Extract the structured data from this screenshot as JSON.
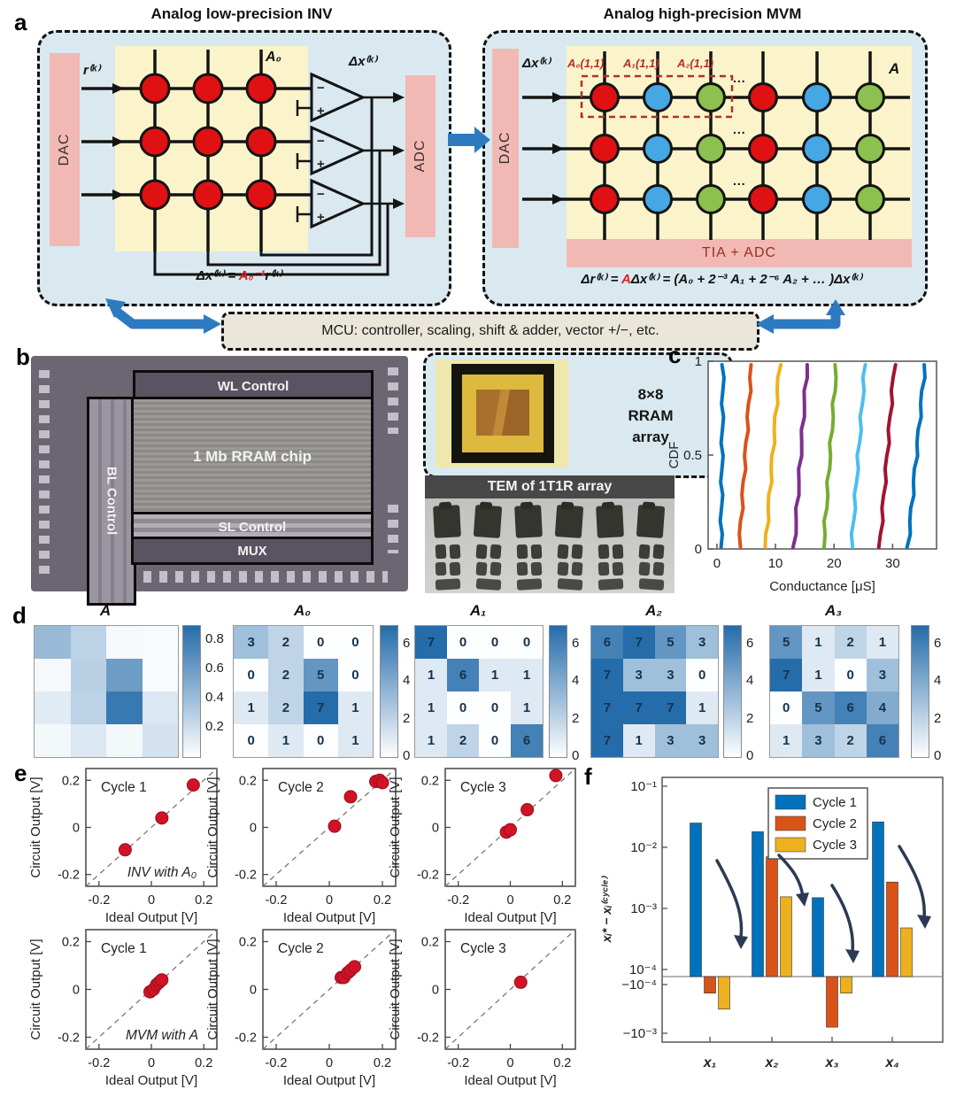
{
  "figure": {
    "labels": {
      "a": "a",
      "b": "b",
      "c": "c",
      "d": "d",
      "e": "e",
      "f": "f"
    }
  },
  "panel_a": {
    "left_title": "Analog low-precision INV",
    "right_title": "Analog high-precision MVM",
    "left": {
      "dac": "DAC",
      "adc": "ADC",
      "input": "r⁽ᵏ⁾",
      "matrix": "A₀",
      "output": "Δx⁽ᵏ⁾",
      "eq_prefix": "Δx⁽ᵏ⁾ = ",
      "eq_red": "A₀⁻¹",
      "eq_suffix": "r⁽ᵏ⁾"
    },
    "right": {
      "dac": "DAC",
      "input": "Δx⁽ᵏ⁾",
      "matrix": "A",
      "tia": "TIA + ADC",
      "annots": [
        "A₀(1,1)",
        "A₁(1,1)",
        "A₂(1,1)"
      ],
      "dots": "...",
      "eq_prefix": "Δr⁽ᵏ⁾ = ",
      "eq_red": "A",
      "eq_suffix": "Δx⁽ᵏ⁾ = (A₀ + 2⁻³ A₁ + 2⁻⁶ A₂ + … )Δx⁽ᵏ⁾"
    },
    "mcu": "MCU: controller, scaling, shift & adder, vector +/−, etc.",
    "colors": {
      "bg": "#d9e9ef",
      "pink": "#f2b9b4",
      "yellow": "#fbf4cb",
      "red": "#e01112",
      "blue": "#45a7e3",
      "green": "#8cc04f",
      "arrow": "#2e7ac0",
      "annot": "#b03226",
      "wire": "#141414",
      "eq_red": "#e02020"
    },
    "right_column_colors": [
      "#e01112",
      "#45a7e3",
      "#8cc04f",
      "#e01112",
      "#45a7e3",
      "#8cc04f"
    ]
  },
  "panel_b": {
    "wl": "WL Control",
    "bl": "BL Control",
    "array": "1 Mb RRAM chip",
    "sl": "SL Control",
    "mux": "MUX",
    "package_lines": [
      "8×8",
      "RRAM",
      "array"
    ],
    "tem_title": "TEM of 1T1R array"
  },
  "chart_data": [
    {
      "id": "c",
      "type": "line",
      "xlabel": "Conductance [μS]",
      "ylabel": "CDF",
      "xlim": [
        -1.5,
        37.5
      ],
      "ylim": [
        0,
        1
      ],
      "xticks": [
        0,
        10,
        20,
        30
      ],
      "yticks": [
        0,
        0.5,
        1
      ],
      "series": [
        {
          "name": "level1",
          "color": "#0072BD",
          "x_at_cdf0": 0.7,
          "x_at_cdf1": 1.05
        },
        {
          "name": "level2",
          "color": "#D95319",
          "x_at_cdf0": 3.8,
          "x_at_cdf1": 5.9
        },
        {
          "name": "level3",
          "color": "#EDB120",
          "x_at_cdf0": 8.3,
          "x_at_cdf1": 10.7
        },
        {
          "name": "level4",
          "color": "#7E2F8E",
          "x_at_cdf0": 13.2,
          "x_at_cdf1": 15.4
        },
        {
          "name": "level5",
          "color": "#77AC30",
          "x_at_cdf0": 18.2,
          "x_at_cdf1": 20.4
        },
        {
          "name": "level6",
          "color": "#4DBEEE",
          "x_at_cdf0": 23.0,
          "x_at_cdf1": 25.3
        },
        {
          "name": "level7",
          "color": "#A2142F",
          "x_at_cdf0": 27.8,
          "x_at_cdf1": 30.3
        },
        {
          "name": "level8",
          "color": "#0072BD",
          "x_at_cdf0": 32.6,
          "x_at_cdf1": 35.5
        }
      ]
    },
    {
      "id": "d",
      "type": "heatmap",
      "maps": [
        {
          "title": "A",
          "vmax": 0.9,
          "show_values": false,
          "colorbar_ticks": [
            0.2,
            0.4,
            0.6,
            0.8
          ],
          "values": [
            [
              0.42,
              0.27,
              0.03,
              0.02
            ],
            [
              0.03,
              0.28,
              0.6,
              0.02
            ],
            [
              0.12,
              0.27,
              0.82,
              0.14
            ],
            [
              0.04,
              0.14,
              0.04,
              0.17
            ]
          ]
        },
        {
          "title": "A₀",
          "vmax": 7,
          "show_values": true,
          "colorbar_ticks": [
            0,
            2,
            4,
            6
          ],
          "values": [
            [
              3,
              2,
              0,
              0
            ],
            [
              0,
              2,
              5,
              0
            ],
            [
              1,
              2,
              7,
              1
            ],
            [
              0,
              1,
              0,
              1
            ]
          ]
        },
        {
          "title": "A₁",
          "vmax": 7,
          "show_values": true,
          "colorbar_ticks": [
            0,
            2,
            4,
            6
          ],
          "values": [
            [
              7,
              0,
              0,
              0
            ],
            [
              1,
              6,
              1,
              1
            ],
            [
              1,
              0,
              0,
              1
            ],
            [
              1,
              2,
              0,
              6
            ]
          ]
        },
        {
          "title": "A₂",
          "vmax": 7,
          "show_values": true,
          "colorbar_ticks": [
            0,
            2,
            4,
            6
          ],
          "values": [
            [
              6,
              7,
              5,
              3
            ],
            [
              7,
              3,
              3,
              0
            ],
            [
              7,
              7,
              7,
              1
            ],
            [
              7,
              1,
              3,
              3
            ]
          ]
        },
        {
          "title": "A₃",
          "vmax": 7,
          "show_values": true,
          "colorbar_ticks": [
            0,
            2,
            4,
            6
          ],
          "values": [
            [
              5,
              1,
              2,
              1
            ],
            [
              7,
              1,
              0,
              3
            ],
            [
              0,
              5,
              6,
              4
            ],
            [
              1,
              3,
              2,
              6
            ]
          ]
        }
      ]
    },
    {
      "id": "e",
      "type": "scatter",
      "xlabel": "Ideal Output [V]",
      "ylabel": "Circuit Output [V]",
      "lim": [
        -0.25,
        0.25
      ],
      "ticks": [
        -0.2,
        0,
        0.2
      ],
      "point_color": "#d01326",
      "subplots": [
        {
          "cycle": "Cycle 1",
          "annotation": "INV with A₀",
          "points": [
            [
              -0.1,
              -0.095
            ],
            [
              0.04,
              0.04
            ],
            [
              0.16,
              0.18
            ]
          ]
        },
        {
          "cycle": "Cycle 2",
          "annotation": "",
          "points": [
            [
              0.02,
              0.005
            ],
            [
              0.08,
              0.13
            ],
            [
              0.175,
              0.195
            ],
            [
              0.19,
              0.2
            ],
            [
              0.2,
              0.19
            ]
          ]
        },
        {
          "cycle": "Cycle 3",
          "annotation": "",
          "points": [
            [
              -0.015,
              -0.02
            ],
            [
              0,
              -0.01
            ],
            [
              0.065,
              0.075
            ],
            [
              0.175,
              0.22
            ]
          ]
        },
        {
          "cycle": "Cycle 1",
          "annotation": "MVM with A",
          "points": [
            [
              -0.005,
              -0.01
            ],
            [
              0.008,
              0
            ],
            [
              0.02,
              0.02
            ],
            [
              0.03,
              0.03
            ],
            [
              0.04,
              0.04
            ]
          ]
        },
        {
          "cycle": "Cycle 2",
          "annotation": "",
          "points": [
            [
              0.045,
              0.05
            ],
            [
              0.055,
              0.05
            ],
            [
              0.07,
              0.07
            ],
            [
              0.08,
              0.08
            ],
            [
              0.095,
              0.095
            ]
          ]
        },
        {
          "cycle": "Cycle 3",
          "annotation": "",
          "points": [
            [
              0.04,
              0.03
            ]
          ]
        }
      ]
    },
    {
      "id": "f",
      "type": "bar",
      "ylabel": "xᵢ* − xᵢ⁽ᶜʸᶜˡᵉ⁾",
      "categories": [
        "x₁",
        "x₂",
        "x₃",
        "x₄"
      ],
      "yticks_pos": [
        "10⁻¹",
        "10⁻²",
        "10⁻³",
        "10⁻⁴"
      ],
      "yticks_neg": [
        "−10⁻⁴",
        "−10⁻³"
      ],
      "legend": [
        "Cycle 1",
        "Cycle 2",
        "Cycle 3"
      ],
      "colors": [
        "#0072BD",
        "#D95319",
        "#EDB120"
      ],
      "series": [
        {
          "name": "Cycle 1",
          "values": [
            0.025,
            0.018,
            0.0015,
            0.026
          ]
        },
        {
          "name": "Cycle 2",
          "values": [
            -0.00015,
            0.007,
            -0.00075,
            0.0027
          ]
        },
        {
          "name": "Cycle 3",
          "values": [
            -0.00032,
            0.00155,
            -0.00015,
            0.00048
          ]
        }
      ]
    }
  ]
}
